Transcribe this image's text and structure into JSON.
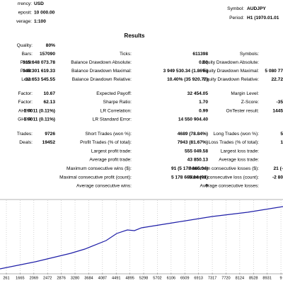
{
  "header": {
    "left": [
      {
        "label": "rrency:",
        "value": "USD"
      },
      {
        "label": "eposit:",
        "value": "10 000.00"
      },
      {
        "label": "verage:",
        "value": "1:100"
      }
    ],
    "right": [
      {
        "label": "Symbol:",
        "value": "AUDJPY"
      },
      {
        "label": "Period:",
        "value": "H1 (1970.01.01"
      }
    ]
  },
  "report": {
    "title": "Results",
    "groups": [
      [
        [
          {
            "label": "Quality:",
            "value": "80%"
          },
          null,
          null
        ],
        [
          {
            "label": "Bars:",
            "value": "157090"
          },
          {
            "label": "Ticks:",
            "value": "611398"
          },
          {
            "label": "Symbols:"
          }
        ],
        [
          {
            "label": "Profit:",
            "value": "315 648 073.78"
          },
          {
            "label": "Balance Drawdown Absolute:",
            "value": "0.00"
          },
          {
            "label": "Equity Drawdown Absolute:"
          }
        ],
        [
          {
            "label": "Profit:",
            "value": "348 301 619.33"
          },
          {
            "label": "Balance Drawdown Maximal:",
            "value": "3 949 530.34 (1.86%)"
          },
          {
            "label": "Equity Drawdown Maximal:",
            "value": "5 080 77"
          }
        ],
        [
          {
            "label": "Loss:",
            "value": "-32 653 545.55"
          },
          {
            "label": "Balance Drawdown Relative:",
            "value": "10.40% (35 920.77)"
          },
          {
            "label": "Equity Drawdown Relative:",
            "value": "22.72"
          }
        ]
      ],
      [
        [
          {
            "label": "Factor:",
            "value": "10.67"
          },
          {
            "label": "Expected Payoff:",
            "value": "32 454.05"
          },
          {
            "label": "Margin Level:"
          }
        ],
        [
          {
            "label": "Factor:",
            "value": "62.13"
          },
          {
            "label": "Sharpe Ratio:",
            "value": "1.70"
          },
          {
            "label": "Z-Score:",
            "value": "-35"
          }
        ],
        [
          {
            "label": "AHPR:",
            "value": "1.0011 (0.11%)"
          },
          {
            "label": "LR Correlation:",
            "value": "0.99"
          },
          {
            "label": "OnTester result:",
            "value": "1445"
          }
        ],
        [
          {
            "label": "GHPR:",
            "value": "1.0011 (0.11%)"
          },
          {
            "label": "LR Standard Error:",
            "value": "14 550 904.40"
          },
          null
        ]
      ],
      [
        [
          {
            "label": "Trades:",
            "value": "9726"
          },
          {
            "label": "Short Trades (won %):",
            "value": "4689 (78.84%)"
          },
          {
            "label": "Long Trades (won %):",
            "value": "5"
          }
        ],
        [
          {
            "label": "Deals:",
            "value": "19452"
          },
          {
            "label": "Profit Trades (% of total):",
            "value": "7943 (81.67%)"
          },
          {
            "label": "Loss Trades (% of total):",
            "value": "1"
          }
        ],
        [
          null,
          {
            "label": "Largest profit trade:",
            "value": "555 049.58"
          },
          {
            "label": "Largest loss trade:"
          }
        ],
        [
          null,
          {
            "label": "Average profit trade:",
            "value": "43 850.13"
          },
          {
            "label": "Average loss trade:"
          }
        ],
        [
          null,
          {
            "label": "Maximum consecutive wins ($):",
            "value": "91 (5 178 665.04)"
          },
          {
            "label": "Maximum consecutive losses ($):",
            "value": "21 (-"
          }
        ],
        [
          null,
          {
            "label": "Maximal consecutive profit (count):",
            "value": "5 178 665.04 (91)"
          },
          {
            "label": "Maximal consecutive loss (count):",
            "value": "-2 80"
          }
        ],
        [
          null,
          {
            "label": "Average consecutive wins:",
            "value": "9"
          },
          {
            "label": "Average consecutive losses:"
          }
        ]
      ]
    ]
  },
  "chart_data": {
    "type": "line",
    "x": [
      1074,
      2114,
      3155,
      3570,
      4195,
      4507,
      4819,
      5027,
      5235,
      6275,
      7316,
      8356,
      9396
    ],
    "series": [
      {
        "color": "#1f1fa8",
        "values": [
          19800000,
          52800000,
          92400000,
          112200000,
          151800000,
          184900000,
          201300000,
          198100000,
          211300000,
          237700000,
          264100000,
          283900000,
          310300000
        ]
      }
    ],
    "xlim": [
      1074,
      9396
    ],
    "ylim": [
      0,
      340000000
    ],
    "xticks": [
      {
        "value": 1261,
        "label": "261"
      },
      1665,
      2069,
      2472,
      2876,
      3280,
      3684,
      4087,
      4491,
      4895,
      5298,
      5702,
      6106,
      6509,
      6913,
      7317,
      7720,
      8124,
      8528,
      8931,
      {
        "value": 9335,
        "label": "9"
      }
    ],
    "grid": true
  }
}
